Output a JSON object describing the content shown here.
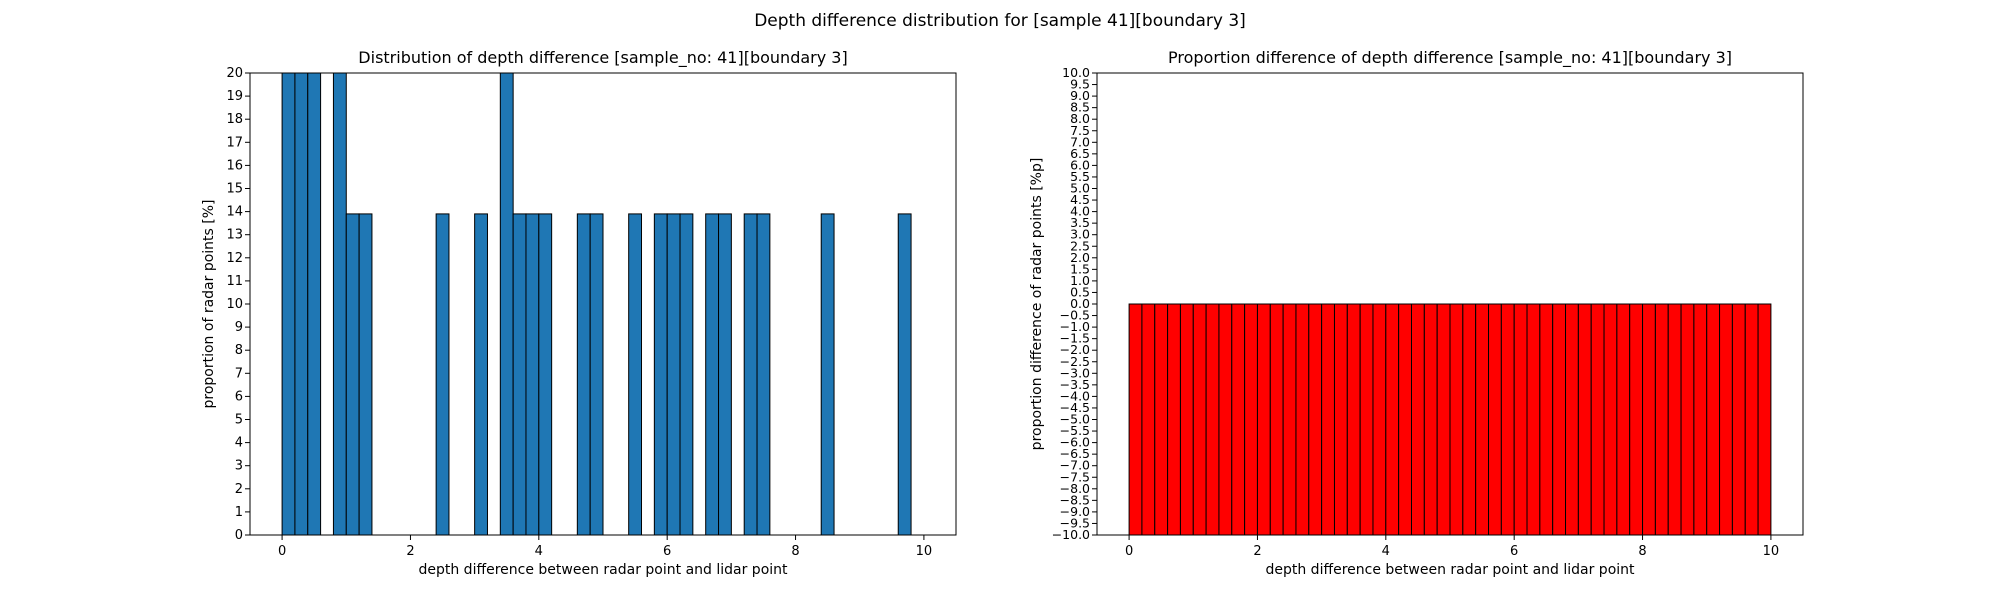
{
  "figure": {
    "suptitle": "Depth difference distribution for [sample 41][boundary 3]"
  },
  "chart_data": [
    {
      "type": "bar",
      "title": "Distribution of depth difference [sample_no: 41][boundary 3]",
      "xlabel": "depth difference between radar point and lidar point",
      "ylabel": "proportion of radar points [%]",
      "xlim": [
        -0.5,
        10.5
      ],
      "ylim": [
        0,
        20
      ],
      "xticks": [
        0,
        2,
        4,
        6,
        8,
        10
      ],
      "yticks": [
        0,
        1,
        2,
        3,
        4,
        5,
        6,
        7,
        8,
        9,
        10,
        11,
        12,
        13,
        14,
        15,
        16,
        17,
        18,
        19,
        20
      ],
      "bin_width": 0.2,
      "bin_starts": [
        0.0,
        0.2,
        0.4,
        0.8,
        1.0,
        1.2,
        2.4,
        3.0,
        3.4,
        3.6,
        3.8,
        4.0,
        4.6,
        4.8,
        5.4,
        5.8,
        6.0,
        6.2,
        6.6,
        6.8,
        7.2,
        7.4,
        8.4,
        9.6
      ],
      "values": [
        20,
        20,
        20,
        20,
        13.9,
        13.9,
        13.9,
        13.9,
        20,
        13.9,
        13.9,
        13.9,
        13.9,
        13.9,
        13.9,
        13.9,
        13.9,
        13.9,
        13.9,
        13.9,
        13.9,
        13.9,
        13.9,
        13.9
      ],
      "bar_color": "#1f77b4",
      "edge_color": "#000000",
      "grid": false
    },
    {
      "type": "bar",
      "title": "Proportion difference of depth difference [sample_no: 41][boundary 3]",
      "xlabel": "depth difference between radar point and lidar point",
      "ylabel": "proportion difference of radar points [%p]",
      "xlim": [
        -0.5,
        10.5
      ],
      "ylim": [
        -10,
        10
      ],
      "xticks": [
        0,
        2,
        4,
        6,
        8,
        10
      ],
      "ytick_step": 0.5,
      "bin_width": 0.2,
      "bin_range": [
        0,
        10
      ],
      "values": [
        -10,
        -10,
        -10,
        -10,
        -10,
        -10,
        -10,
        -10,
        -10,
        -10,
        -10,
        -10,
        -10,
        -10,
        -10,
        -10,
        -10,
        -10,
        -10,
        -10,
        -10,
        -10,
        -10,
        -10,
        -10,
        -10,
        -10,
        -10,
        -10,
        -10,
        -10,
        -10,
        -10,
        -10,
        -10,
        -10,
        -10,
        -10,
        -10,
        -10,
        -10,
        -10,
        -10,
        -10,
        -10,
        -10,
        -10,
        -10,
        -10,
        -10
      ],
      "bar_color": "#ff0000",
      "edge_color": "#000000",
      "grid": false
    }
  ]
}
